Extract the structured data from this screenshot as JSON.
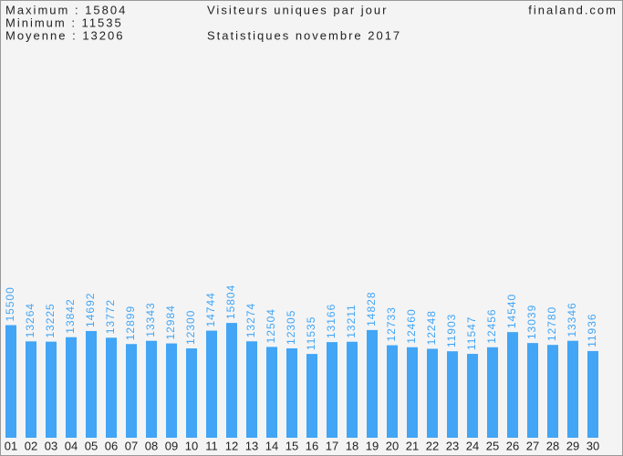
{
  "chart_data": {
    "type": "bar",
    "title": "Visiteurs uniques par jour",
    "subtitle": "Statistiques novembre 2017",
    "site": "finaland.com",
    "annotations": [
      "Maximum : 15804",
      "Minimum : 11535",
      "Moyenne : 13206"
    ],
    "categories": [
      "01",
      "02",
      "03",
      "04",
      "05",
      "06",
      "07",
      "08",
      "09",
      "10",
      "11",
      "12",
      "13",
      "14",
      "15",
      "16",
      "17",
      "18",
      "19",
      "20",
      "21",
      "22",
      "23",
      "24",
      "25",
      "26",
      "27",
      "28",
      "29",
      "30"
    ],
    "values": [
      15500,
      13264,
      13225,
      13842,
      14692,
      13772,
      12899,
      13343,
      12984,
      12300,
      14744,
      15804,
      13274,
      12504,
      12305,
      11535,
      13166,
      13211,
      14828,
      12733,
      12460,
      12248,
      11903,
      11547,
      12456,
      14540,
      13039,
      12780,
      13346,
      11936
    ],
    "color": "#42a5f5",
    "ylim": [
      0,
      60000
    ]
  }
}
